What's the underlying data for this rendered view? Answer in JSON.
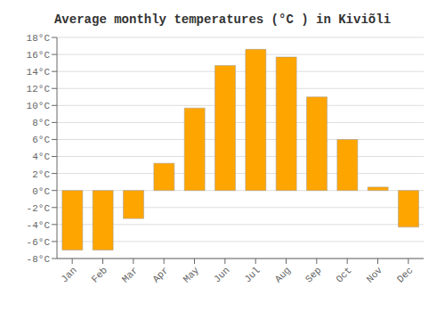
{
  "chart_data": {
    "type": "bar",
    "title": "Average monthly temperatures (°C ) in Kiviõli",
    "categories": [
      "Jan",
      "Feb",
      "Mar",
      "Apr",
      "May",
      "Jun",
      "Jul",
      "Aug",
      "Sep",
      "Oct",
      "Nov",
      "Dec"
    ],
    "values": [
      -7.0,
      -7.0,
      -3.3,
      3.2,
      9.7,
      14.7,
      16.6,
      15.7,
      11.0,
      6.0,
      0.4,
      -4.3
    ],
    "color": "#FFA500",
    "ylim": [
      -8,
      18
    ],
    "yticks": [
      {
        "value": -8,
        "label": "-8°C"
      },
      {
        "value": -6,
        "label": "-6°C"
      },
      {
        "value": -4,
        "label": "-4°C"
      },
      {
        "value": -2,
        "label": "-2°C"
      },
      {
        "value": 0,
        "label": "0°C"
      },
      {
        "value": 2,
        "label": "2°C"
      },
      {
        "value": 4,
        "label": "4°C"
      },
      {
        "value": 6,
        "label": "6°C"
      },
      {
        "value": 8,
        "label": "8°C"
      },
      {
        "value": 10,
        "label": "10°C"
      },
      {
        "value": 12,
        "label": "12°C"
      },
      {
        "value": 14,
        "label": "14°C"
      },
      {
        "value": 16,
        "label": "16°C"
      },
      {
        "value": 18,
        "label": "18°C"
      }
    ],
    "grid": true
  }
}
